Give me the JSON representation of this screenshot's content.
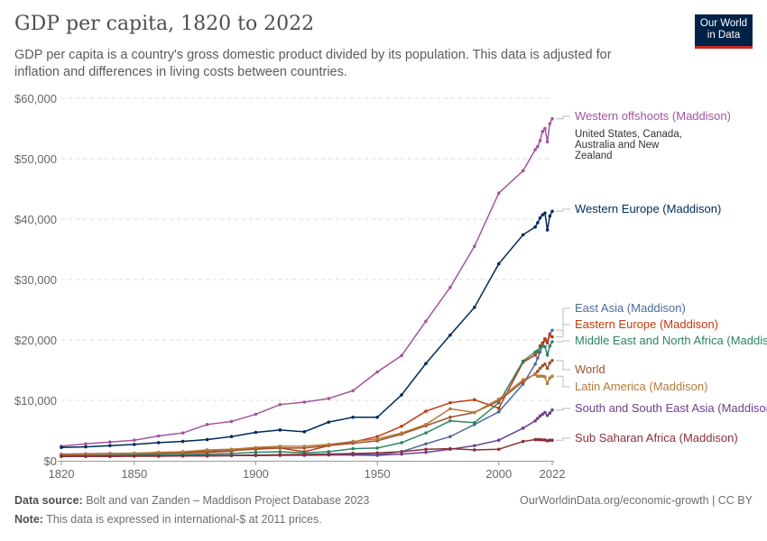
{
  "header": {
    "title": "GDP per capita, 1820 to 2022",
    "subtitle": "GDP per capita is a country's gross domestic product divided by its population. This data is adjusted for inflation and differences in living costs between countries.",
    "logo": "Our World in Data"
  },
  "footer": {
    "source_label": "Data source:",
    "source": "Bolt and van Zanden – Maddison Project Database 2023",
    "note_label": "Note:",
    "note": "This data is expressed in international-$ at 2011 prices.",
    "credit": "OurWorldinData.org/economic-growth | CC BY"
  },
  "chart_data": {
    "type": "line",
    "title": "GDP per capita, 1820 to 2022",
    "ylim": [
      0,
      60000
    ],
    "xlim": [
      1820,
      2022
    ],
    "y_ticks": [
      "$0",
      "$10,000",
      "$20,000",
      "$30,000",
      "$40,000",
      "$50,000",
      "$60,000"
    ],
    "x_ticks": [
      "1820",
      "1850",
      "1900",
      "1950",
      "2000",
      "2022"
    ],
    "grid": "horizontal dashed",
    "legend": "right, inline labels",
    "x": [
      1820,
      1830,
      1840,
      1850,
      1860,
      1870,
      1880,
      1890,
      1900,
      1910,
      1920,
      1930,
      1940,
      1950,
      1960,
      1970,
      1980,
      1990,
      2000,
      2010,
      2015,
      2016,
      2017,
      2018,
      2019,
      2020,
      2021,
      2022
    ],
    "series": [
      {
        "name": "Western offshoots (Maddison)",
        "note": "United States, Canada, Australia and New Zealand",
        "color": "#a2559c",
        "values": [
          2400,
          2800,
          3100,
          3400,
          4100,
          4600,
          6000,
          6500,
          7700,
          9300,
          9700,
          10300,
          11600,
          14700,
          17400,
          23100,
          28700,
          35500,
          44300,
          48000,
          51500,
          52000,
          53000,
          54500,
          55000,
          52800,
          55800,
          56600
        ]
      },
      {
        "name": "Western Europe (Maddison)",
        "color": "#00295b",
        "values": [
          2200,
          2300,
          2500,
          2700,
          3000,
          3200,
          3500,
          4000,
          4700,
          5100,
          4800,
          6400,
          7200,
          7200,
          10900,
          16100,
          20800,
          25400,
          32600,
          37400,
          38700,
          39400,
          40200,
          40700,
          41000,
          38200,
          40500,
          41300
        ]
      },
      {
        "name": "East Asia (Maddison)",
        "color": "#4c6a9c",
        "values": [
          900,
          850,
          850,
          850,
          850,
          850,
          900,
          900,
          950,
          950,
          1000,
          1100,
          1200,
          1000,
          1500,
          2800,
          4000,
          6000,
          8100,
          12700,
          16000,
          17000,
          18000,
          19000,
          20000,
          19800,
          21000,
          21600
        ]
      },
      {
        "name": "Eastern Europe (Maddison)",
        "color": "#c23a0d",
        "values": [
          1000,
          1000,
          1050,
          1100,
          1250,
          1300,
          1400,
          1600,
          2100,
          2100,
          1500,
          2500,
          3100,
          4000,
          5700,
          8200,
          9600,
          10100,
          8700,
          16300,
          17500,
          18000,
          19000,
          19500,
          20200,
          19500,
          20800,
          20500
        ]
      },
      {
        "name": "Middle East and North Africa (Maddison)",
        "color": "#2c8465",
        "values": [
          900,
          900,
          900,
          950,
          1000,
          1050,
          1100,
          1200,
          1400,
          1500,
          1300,
          1500,
          2000,
          2100,
          3000,
          4600,
          6600,
          6300,
          9600,
          16500,
          18000,
          18200,
          18700,
          19000,
          18900,
          17500,
          19000,
          19700
        ]
      },
      {
        "name": "World",
        "color": "#a0522d",
        "values": [
          1100,
          1150,
          1200,
          1250,
          1350,
          1450,
          1550,
          1700,
          1900,
          2100,
          2100,
          2500,
          2900,
          3300,
          4400,
          5800,
          7200,
          8000,
          9900,
          13100,
          14400,
          14800,
          15300,
          15700,
          16000,
          15300,
          16200,
          16600
        ]
      },
      {
        "name": "Latin America (Maddison)",
        "color": "#b67a3a",
        "values": [
          1000,
          1050,
          1100,
          1200,
          1400,
          1500,
          1800,
          1900,
          2200,
          2400,
          2400,
          2700,
          3200,
          3600,
          4600,
          6000,
          8600,
          8000,
          10200,
          13400,
          14300,
          14000,
          14000,
          14000,
          13900,
          12800,
          13700,
          14000
        ]
      },
      {
        "name": "South and South East Asia (Maddison)",
        "color": "#6d3e91",
        "values": [
          800,
          800,
          800,
          800,
          800,
          800,
          800,
          850,
          850,
          900,
          900,
          950,
          950,
          900,
          1100,
          1400,
          1900,
          2500,
          3400,
          5400,
          6600,
          7000,
          7400,
          7700,
          8000,
          7500,
          7900,
          8400
        ]
      },
      {
        "name": "Sub Saharan Africa (Maddison)",
        "color": "#883039",
        "values": [
          700,
          700,
          700,
          750,
          750,
          800,
          800,
          850,
          900,
          1000,
          1050,
          1100,
          1200,
          1300,
          1500,
          1900,
          2000,
          1800,
          1900,
          3200,
          3500,
          3500,
          3500,
          3450,
          3450,
          3300,
          3400,
          3400
        ]
      }
    ]
  }
}
